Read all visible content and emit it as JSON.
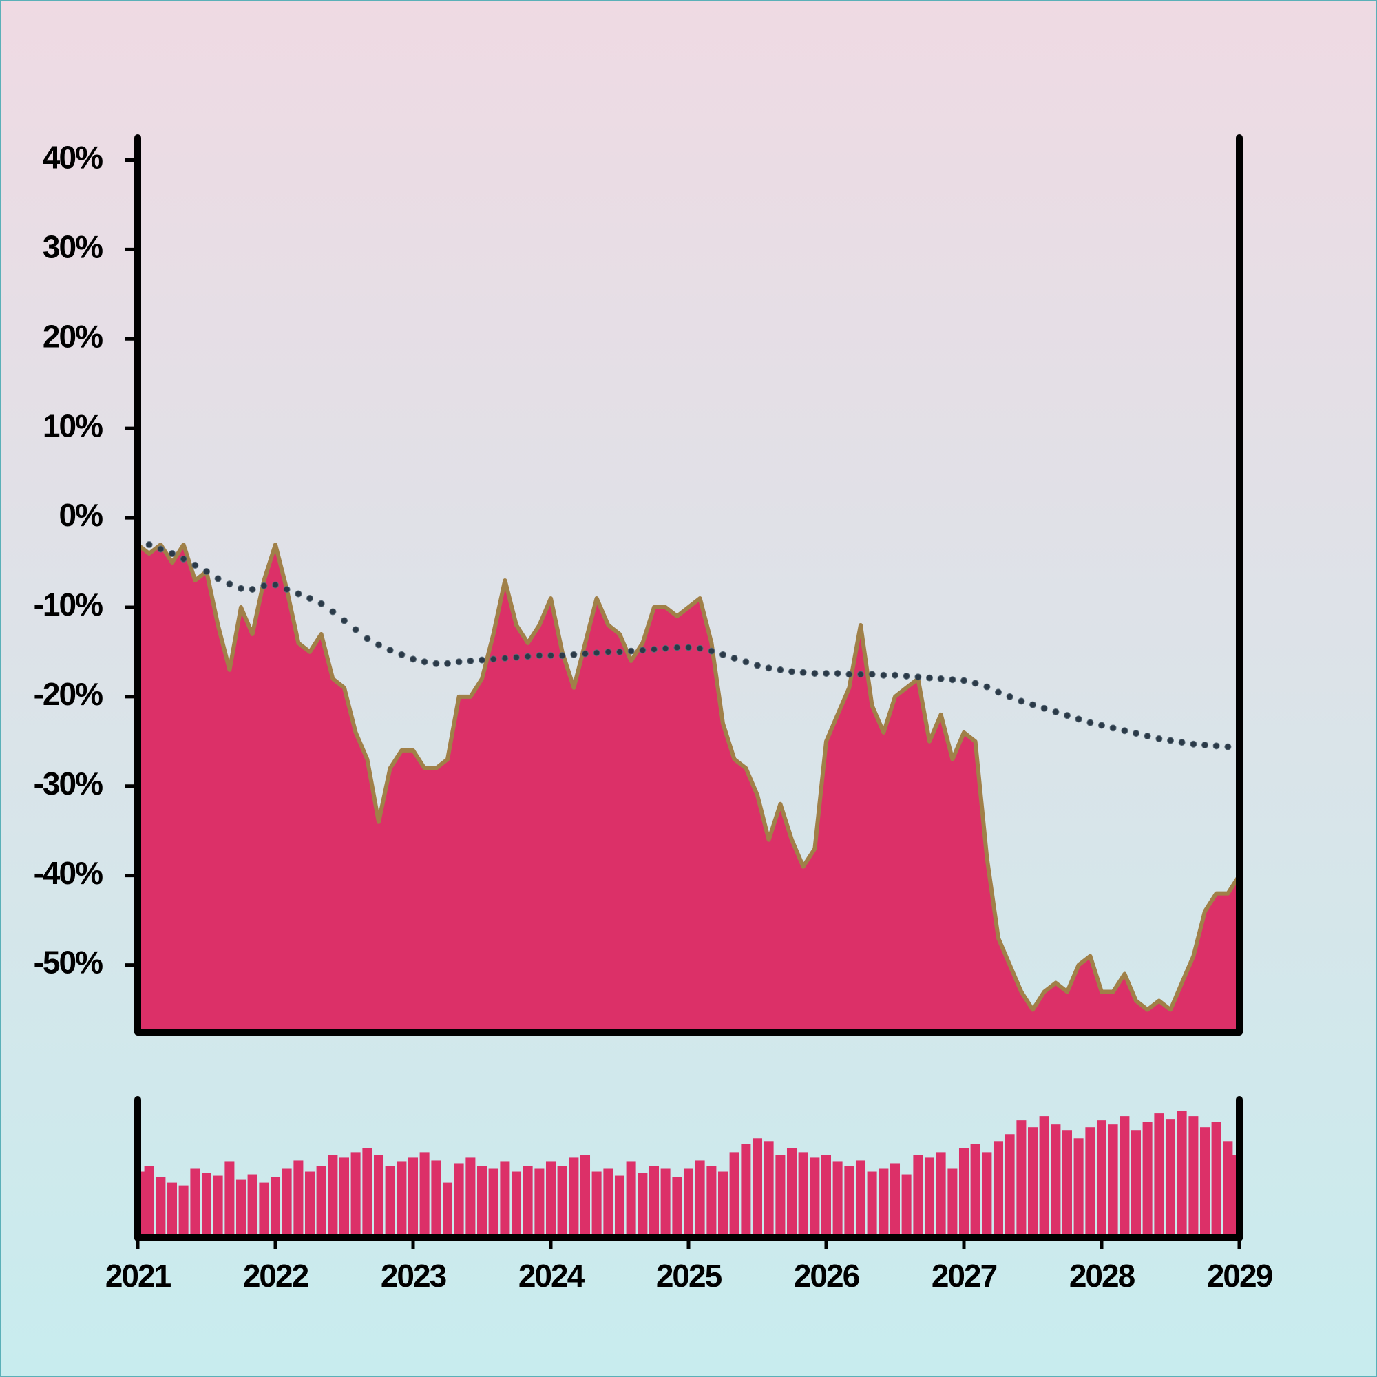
{
  "chart_data": {
    "type": "area",
    "x": [
      2021,
      2021.083,
      2021.167,
      2021.25,
      2021.333,
      2021.417,
      2021.5,
      2021.583,
      2021.667,
      2021.75,
      2021.833,
      2021.917,
      2022,
      2022.083,
      2022.167,
      2022.25,
      2022.333,
      2022.417,
      2022.5,
      2022.583,
      2022.667,
      2022.75,
      2022.833,
      2022.917,
      2023,
      2023.083,
      2023.167,
      2023.25,
      2023.333,
      2023.417,
      2023.5,
      2023.583,
      2023.667,
      2023.75,
      2023.833,
      2023.917,
      2024,
      2024.083,
      2024.167,
      2024.25,
      2024.333,
      2024.417,
      2024.5,
      2024.583,
      2024.667,
      2024.75,
      2024.833,
      2024.917,
      2025,
      2025.083,
      2025.167,
      2025.25,
      2025.333,
      2025.417,
      2025.5,
      2025.583,
      2025.667,
      2025.75,
      2025.833,
      2025.917,
      2026,
      2026.083,
      2026.167,
      2026.25,
      2026.333,
      2026.417,
      2026.5,
      2026.583,
      2026.667,
      2026.75,
      2026.833,
      2026.917,
      2027,
      2027.083,
      2027.167,
      2027.25,
      2027.333,
      2027.417,
      2027.5,
      2027.583,
      2027.667,
      2027.75,
      2027.833,
      2027.917,
      2028,
      2028.083,
      2028.167,
      2028.25,
      2028.333,
      2028.417,
      2028.5,
      2028.583,
      2028.667,
      2028.75,
      2028.833,
      2028.917,
      2029
    ],
    "xlim": [
      2021,
      2029
    ],
    "xticks": [
      2021,
      2022,
      2023,
      2024,
      2025,
      2026,
      2027,
      2028,
      2029
    ],
    "ylim": [
      -57.5,
      42.5
    ],
    "yticks": [
      {
        "value": 40,
        "label": "40%"
      },
      {
        "value": 30,
        "label": "30%"
      },
      {
        "value": 20,
        "label": "20%"
      },
      {
        "value": 10,
        "label": "10%"
      },
      {
        "value": 0,
        "label": "0%"
      },
      {
        "value": -10,
        "label": "-10%"
      },
      {
        "value": -20,
        "label": "-20%"
      },
      {
        "value": -30,
        "label": "-30%"
      },
      {
        "value": -40,
        "label": "-40%"
      },
      {
        "value": -50,
        "label": "-50%"
      }
    ],
    "series": [
      {
        "type": "area",
        "color": "#dc3068",
        "line_color": "#a08048",
        "values": [
          -3,
          -4,
          -3,
          -5,
          -3,
          -7,
          -6,
          -12,
          -17,
          -10,
          -13,
          -7,
          -3,
          -8,
          -14,
          -15,
          -13,
          -18,
          -19,
          -24,
          -27,
          -34,
          -28,
          -26,
          -26,
          -28,
          -28,
          -27,
          -20,
          -20,
          -18,
          -13,
          -7,
          -12,
          -14,
          -12,
          -9,
          -15,
          -19,
          -14,
          -9,
          -12,
          -13,
          -16,
          -14,
          -10,
          -10,
          -11,
          -10,
          -9,
          -14,
          -23,
          -27,
          -28,
          -31,
          -36,
          -32,
          -36,
          -39,
          -37,
          -25,
          -22,
          -19,
          -12,
          -21,
          -24,
          -20,
          -19,
          -18,
          -25,
          -22,
          -27,
          -24,
          -25,
          -38,
          -47,
          -50,
          -53,
          -55,
          -53,
          -52,
          -53,
          -50,
          -49,
          -53,
          -53,
          -51,
          -54,
          -55,
          -54,
          -55,
          -52,
          -49,
          -44,
          -42,
          -42,
          -40
        ]
      },
      {
        "type": "dotted",
        "color": "#2b3a48",
        "values": [
          -3.3,
          -3.0,
          -3.5,
          -4.0,
          -4.6,
          -5.3,
          -6.0,
          -6.8,
          -7.4,
          -7.9,
          -8.0,
          -7.6,
          -7.5,
          -8.0,
          -8.5,
          -9.0,
          -9.6,
          -10.5,
          -11.5,
          -12.5,
          -13.5,
          -14.2,
          -14.8,
          -15.3,
          -15.8,
          -16.1,
          -16.3,
          -16.3,
          -16.1,
          -16.0,
          -15.9,
          -15.8,
          -15.7,
          -15.6,
          -15.5,
          -15.4,
          -15.4,
          -15.4,
          -15.3,
          -15.2,
          -15.1,
          -15.0,
          -15.0,
          -14.9,
          -14.8,
          -14.7,
          -14.6,
          -14.5,
          -14.5,
          -14.6,
          -14.9,
          -15.3,
          -15.7,
          -16.1,
          -16.5,
          -16.8,
          -17.0,
          -17.2,
          -17.3,
          -17.4,
          -17.4,
          -17.4,
          -17.5,
          -17.5,
          -17.5,
          -17.6,
          -17.6,
          -17.7,
          -17.8,
          -17.9,
          -18.0,
          -18.1,
          -18.2,
          -18.5,
          -18.9,
          -19.5,
          -20.0,
          -20.5,
          -20.9,
          -21.3,
          -21.7,
          -22.1,
          -22.5,
          -22.9,
          -23.2,
          -23.5,
          -23.8,
          -24.1,
          -24.4,
          -24.7,
          -24.9,
          -25.1,
          -25.3,
          -25.4,
          -25.5,
          -25.6,
          -25.6
        ]
      }
    ],
    "volume": {
      "type": "bar",
      "color": "#dc3068",
      "ylim": [
        0,
        100
      ],
      "values": [
        48,
        52,
        44,
        40,
        38,
        50,
        47,
        45,
        55,
        42,
        46,
        40,
        44,
        50,
        56,
        48,
        52,
        60,
        58,
        62,
        65,
        60,
        52,
        55,
        58,
        62,
        56,
        40,
        54,
        58,
        52,
        50,
        55,
        48,
        52,
        50,
        55,
        52,
        58,
        60,
        48,
        50,
        45,
        55,
        47,
        52,
        50,
        44,
        50,
        56,
        52,
        48,
        62,
        68,
        72,
        70,
        60,
        65,
        62,
        58,
        60,
        55,
        52,
        56,
        48,
        50,
        54,
        46,
        60,
        58,
        62,
        50,
        65,
        68,
        62,
        70,
        75,
        85,
        80,
        88,
        82,
        78,
        72,
        80,
        85,
        82,
        88,
        78,
        84,
        90,
        86,
        92,
        88,
        80,
        84,
        70,
        60
      ]
    }
  }
}
